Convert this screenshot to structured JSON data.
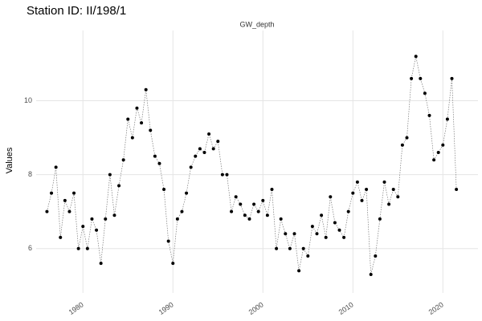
{
  "chart_data": {
    "type": "line",
    "title": "Station ID: II/198/1",
    "subtitle": "GW_depth",
    "y_label": "Values",
    "x": [
      1976.0,
      1976.5,
      1977.0,
      1977.5,
      1978.0,
      1978.5,
      1979.0,
      1979.5,
      1980.0,
      1980.5,
      1981.0,
      1981.5,
      1982.0,
      1982.5,
      1983.0,
      1983.5,
      1984.0,
      1984.5,
      1985.0,
      1985.5,
      1986.0,
      1986.5,
      1987.0,
      1987.5,
      1988.0,
      1988.5,
      1989.0,
      1989.5,
      1990.0,
      1990.5,
      1991.0,
      1991.5,
      1992.0,
      1992.5,
      1993.0,
      1993.5,
      1994.0,
      1994.5,
      1995.0,
      1995.5,
      1996.0,
      1996.5,
      1997.0,
      1997.5,
      1998.0,
      1998.5,
      1999.0,
      1999.5,
      2000.0,
      2000.5,
      2001.0,
      2001.5,
      2002.0,
      2002.5,
      2003.0,
      2003.5,
      2004.0,
      2004.5,
      2005.0,
      2005.5,
      2006.0,
      2006.5,
      2007.0,
      2007.5,
      2008.0,
      2008.5,
      2009.0,
      2009.5,
      2010.0,
      2010.5,
      2011.0,
      2011.5,
      2012.0,
      2012.5,
      2013.0,
      2013.5,
      2014.0,
      2014.5,
      2015.0,
      2015.5,
      2016.0,
      2016.5,
      2017.0,
      2017.5,
      2018.0,
      2018.5,
      2019.0,
      2019.5,
      2020.0,
      2020.5,
      2021.0,
      2021.5
    ],
    "series": [
      {
        "name": "GW_depth",
        "color": "#000000",
        "values": [
          7.0,
          7.5,
          8.2,
          6.3,
          7.3,
          7.0,
          7.5,
          6.0,
          6.6,
          6.0,
          6.8,
          6.5,
          5.6,
          6.8,
          8.0,
          6.9,
          7.7,
          8.4,
          9.5,
          9.0,
          9.8,
          9.4,
          10.3,
          9.2,
          8.5,
          8.3,
          7.6,
          6.2,
          5.6,
          6.8,
          7.0,
          7.5,
          8.2,
          8.5,
          8.7,
          8.6,
          9.1,
          8.7,
          8.9,
          8.0,
          8.0,
          7.0,
          7.4,
          7.2,
          6.9,
          6.8,
          7.2,
          7.0,
          7.3,
          6.9,
          7.6,
          6.0,
          6.8,
          6.4,
          6.0,
          6.4,
          5.4,
          6.0,
          5.8,
          6.6,
          6.4,
          6.9,
          6.3,
          7.4,
          6.7,
          6.5,
          6.3,
          7.0,
          7.5,
          7.8,
          7.3,
          7.6,
          5.3,
          5.8,
          6.8,
          7.8,
          7.2,
          7.6,
          7.4,
          8.8,
          9.0,
          10.6,
          11.2,
          10.6,
          10.2,
          9.6,
          8.4,
          8.6,
          8.8,
          9.5,
          10.6,
          7.6
        ]
      }
    ],
    "xlim": [
      1974.8,
      2023.9
    ],
    "ylim": [
      4.8,
      11.9
    ],
    "xticks": [
      1980,
      1990,
      2000,
      2010,
      2020
    ],
    "yticks": [
      6,
      8,
      10
    ],
    "grid": true
  }
}
